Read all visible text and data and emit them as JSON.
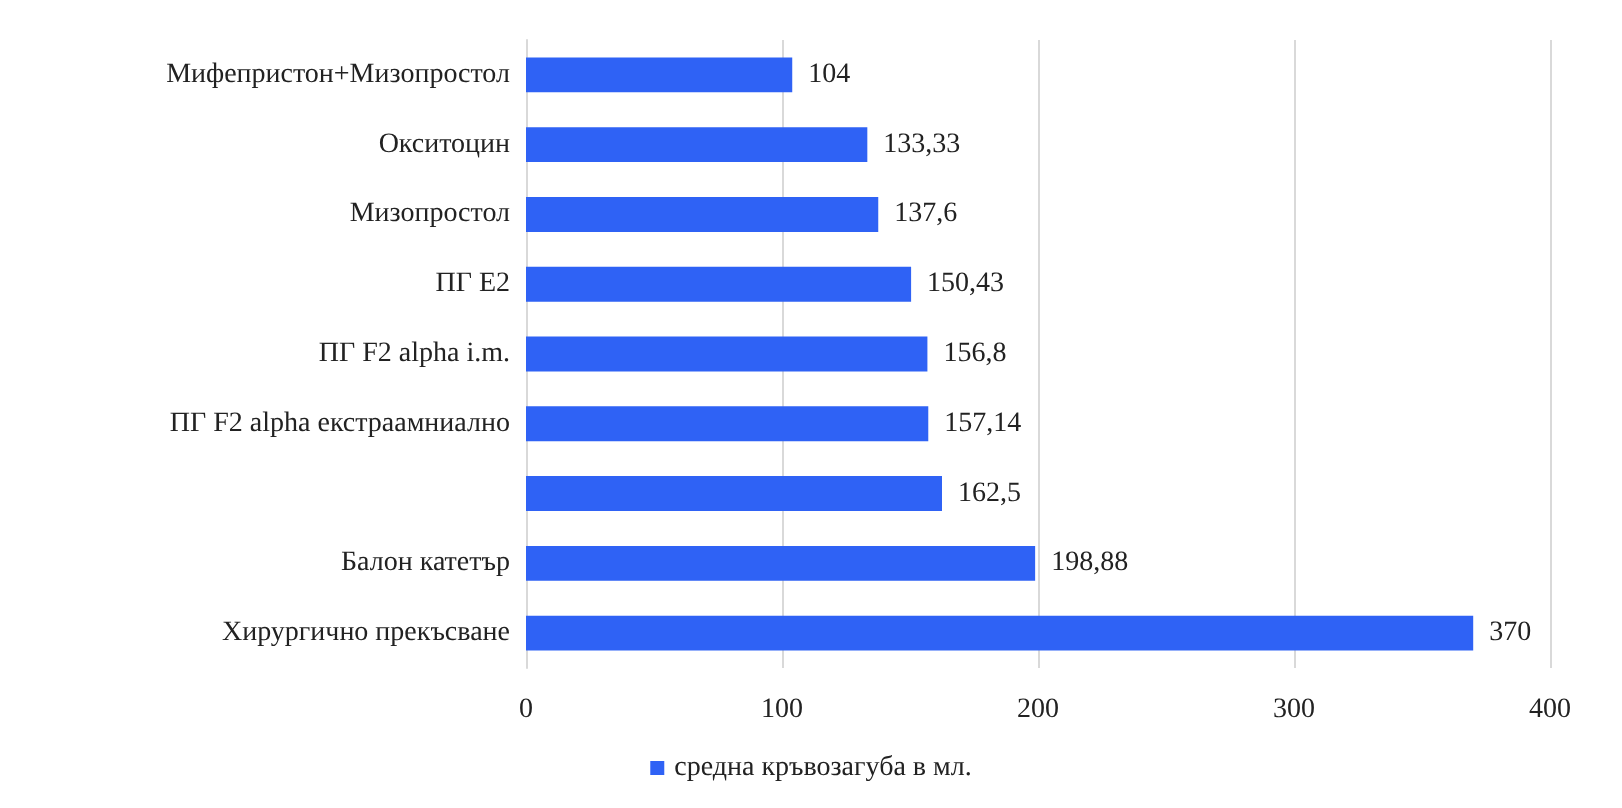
{
  "chart_data": {
    "type": "bar",
    "orientation": "horizontal",
    "categories": [
      "Мифепристон+Мизопростол",
      "Окситоцин",
      "Мизопростол",
      "ПГ Е2",
      "ПГ F2 alpha i.m.",
      "ПГ F2 alpha екстраамниално",
      null,
      "Балон катетър",
      "Хирургично прекъсване"
    ],
    "series": [
      {
        "name": "средна кръвозагуба в мл.",
        "color": "#2f62f5",
        "values": [
          104,
          133.33,
          137.6,
          150.43,
          156.8,
          157.14,
          162.5,
          198.88,
          370
        ],
        "value_labels": [
          "104",
          "133,33",
          "137,6",
          "150,43",
          "156,8",
          "157,14",
          "162,5",
          "198,88",
          "370"
        ]
      }
    ],
    "xlim": [
      0,
      400
    ],
    "xticks": [
      0,
      100,
      200,
      300,
      400
    ],
    "grid": "x",
    "legend": "bottom"
  }
}
